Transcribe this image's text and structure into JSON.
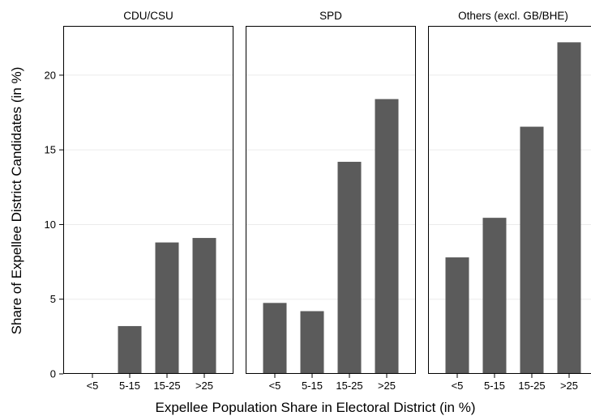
{
  "chart_data": {
    "type": "bar",
    "xlabel": "Expellee Population Share in Electoral District (in %)",
    "ylabel": "Share of Expellee District Candidates (in %)",
    "ylim": [
      0,
      23.3
    ],
    "yticks": [
      0,
      5,
      10,
      15,
      20
    ],
    "categories": [
      "<5",
      "5-15",
      "15-25",
      ">25"
    ],
    "grid": true,
    "bar_color": "#5b5b5b",
    "panels": [
      {
        "title": "CDU/CSU",
        "values": [
          0,
          3.2,
          8.8,
          9.1
        ]
      },
      {
        "title": "SPD",
        "values": [
          4.75,
          4.2,
          14.2,
          18.4
        ]
      },
      {
        "title": "Others (excl. GB/BHE)",
        "values": [
          7.8,
          10.45,
          16.55,
          22.2
        ]
      }
    ]
  }
}
